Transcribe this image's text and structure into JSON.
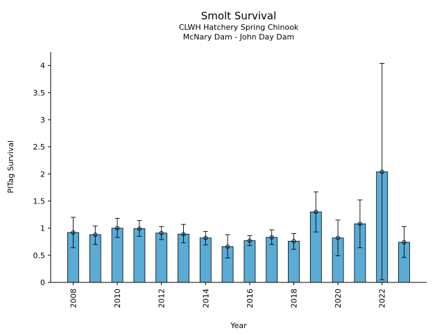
{
  "chart_data": {
    "type": "bar",
    "title": "Smolt Survival",
    "subtitle_lines": [
      "CLWH Hatchery Spring Chinook",
      "McNary Dam - John Day Dam"
    ],
    "xlabel": "Year",
    "ylabel": "PITag Survival",
    "categories": [
      "2008",
      "2009",
      "2010",
      "2011",
      "2012",
      "2013",
      "2014",
      "2015",
      "2016",
      "2017",
      "2018",
      "2019",
      "2020",
      "2021",
      "2022",
      "2023"
    ],
    "values": [
      0.92,
      0.88,
      1.0,
      0.99,
      0.91,
      0.89,
      0.82,
      0.66,
      0.77,
      0.83,
      0.76,
      1.3,
      0.82,
      1.08,
      2.04,
      0.74
    ],
    "error_low": [
      0.64,
      0.7,
      0.83,
      0.85,
      0.79,
      0.73,
      0.69,
      0.45,
      0.68,
      0.7,
      0.61,
      0.93,
      0.49,
      0.64,
      0.05,
      0.46
    ],
    "error_high": [
      1.2,
      1.04,
      1.18,
      1.14,
      1.03,
      1.07,
      0.94,
      0.88,
      0.86,
      0.97,
      0.9,
      1.67,
      1.15,
      1.52,
      4.04,
      1.03
    ],
    "xtick_labels": [
      "2008",
      "2010",
      "2012",
      "2014",
      "2016",
      "2018",
      "2020",
      "2022"
    ],
    "yticks": [
      0,
      0.5,
      1,
      1.5,
      2,
      2.5,
      3,
      3.5,
      4
    ],
    "ylim": [
      0,
      4.25
    ],
    "grid": false,
    "colors": {
      "bar": "#5aabd6",
      "edge": "#000000",
      "error": "#000000"
    }
  }
}
